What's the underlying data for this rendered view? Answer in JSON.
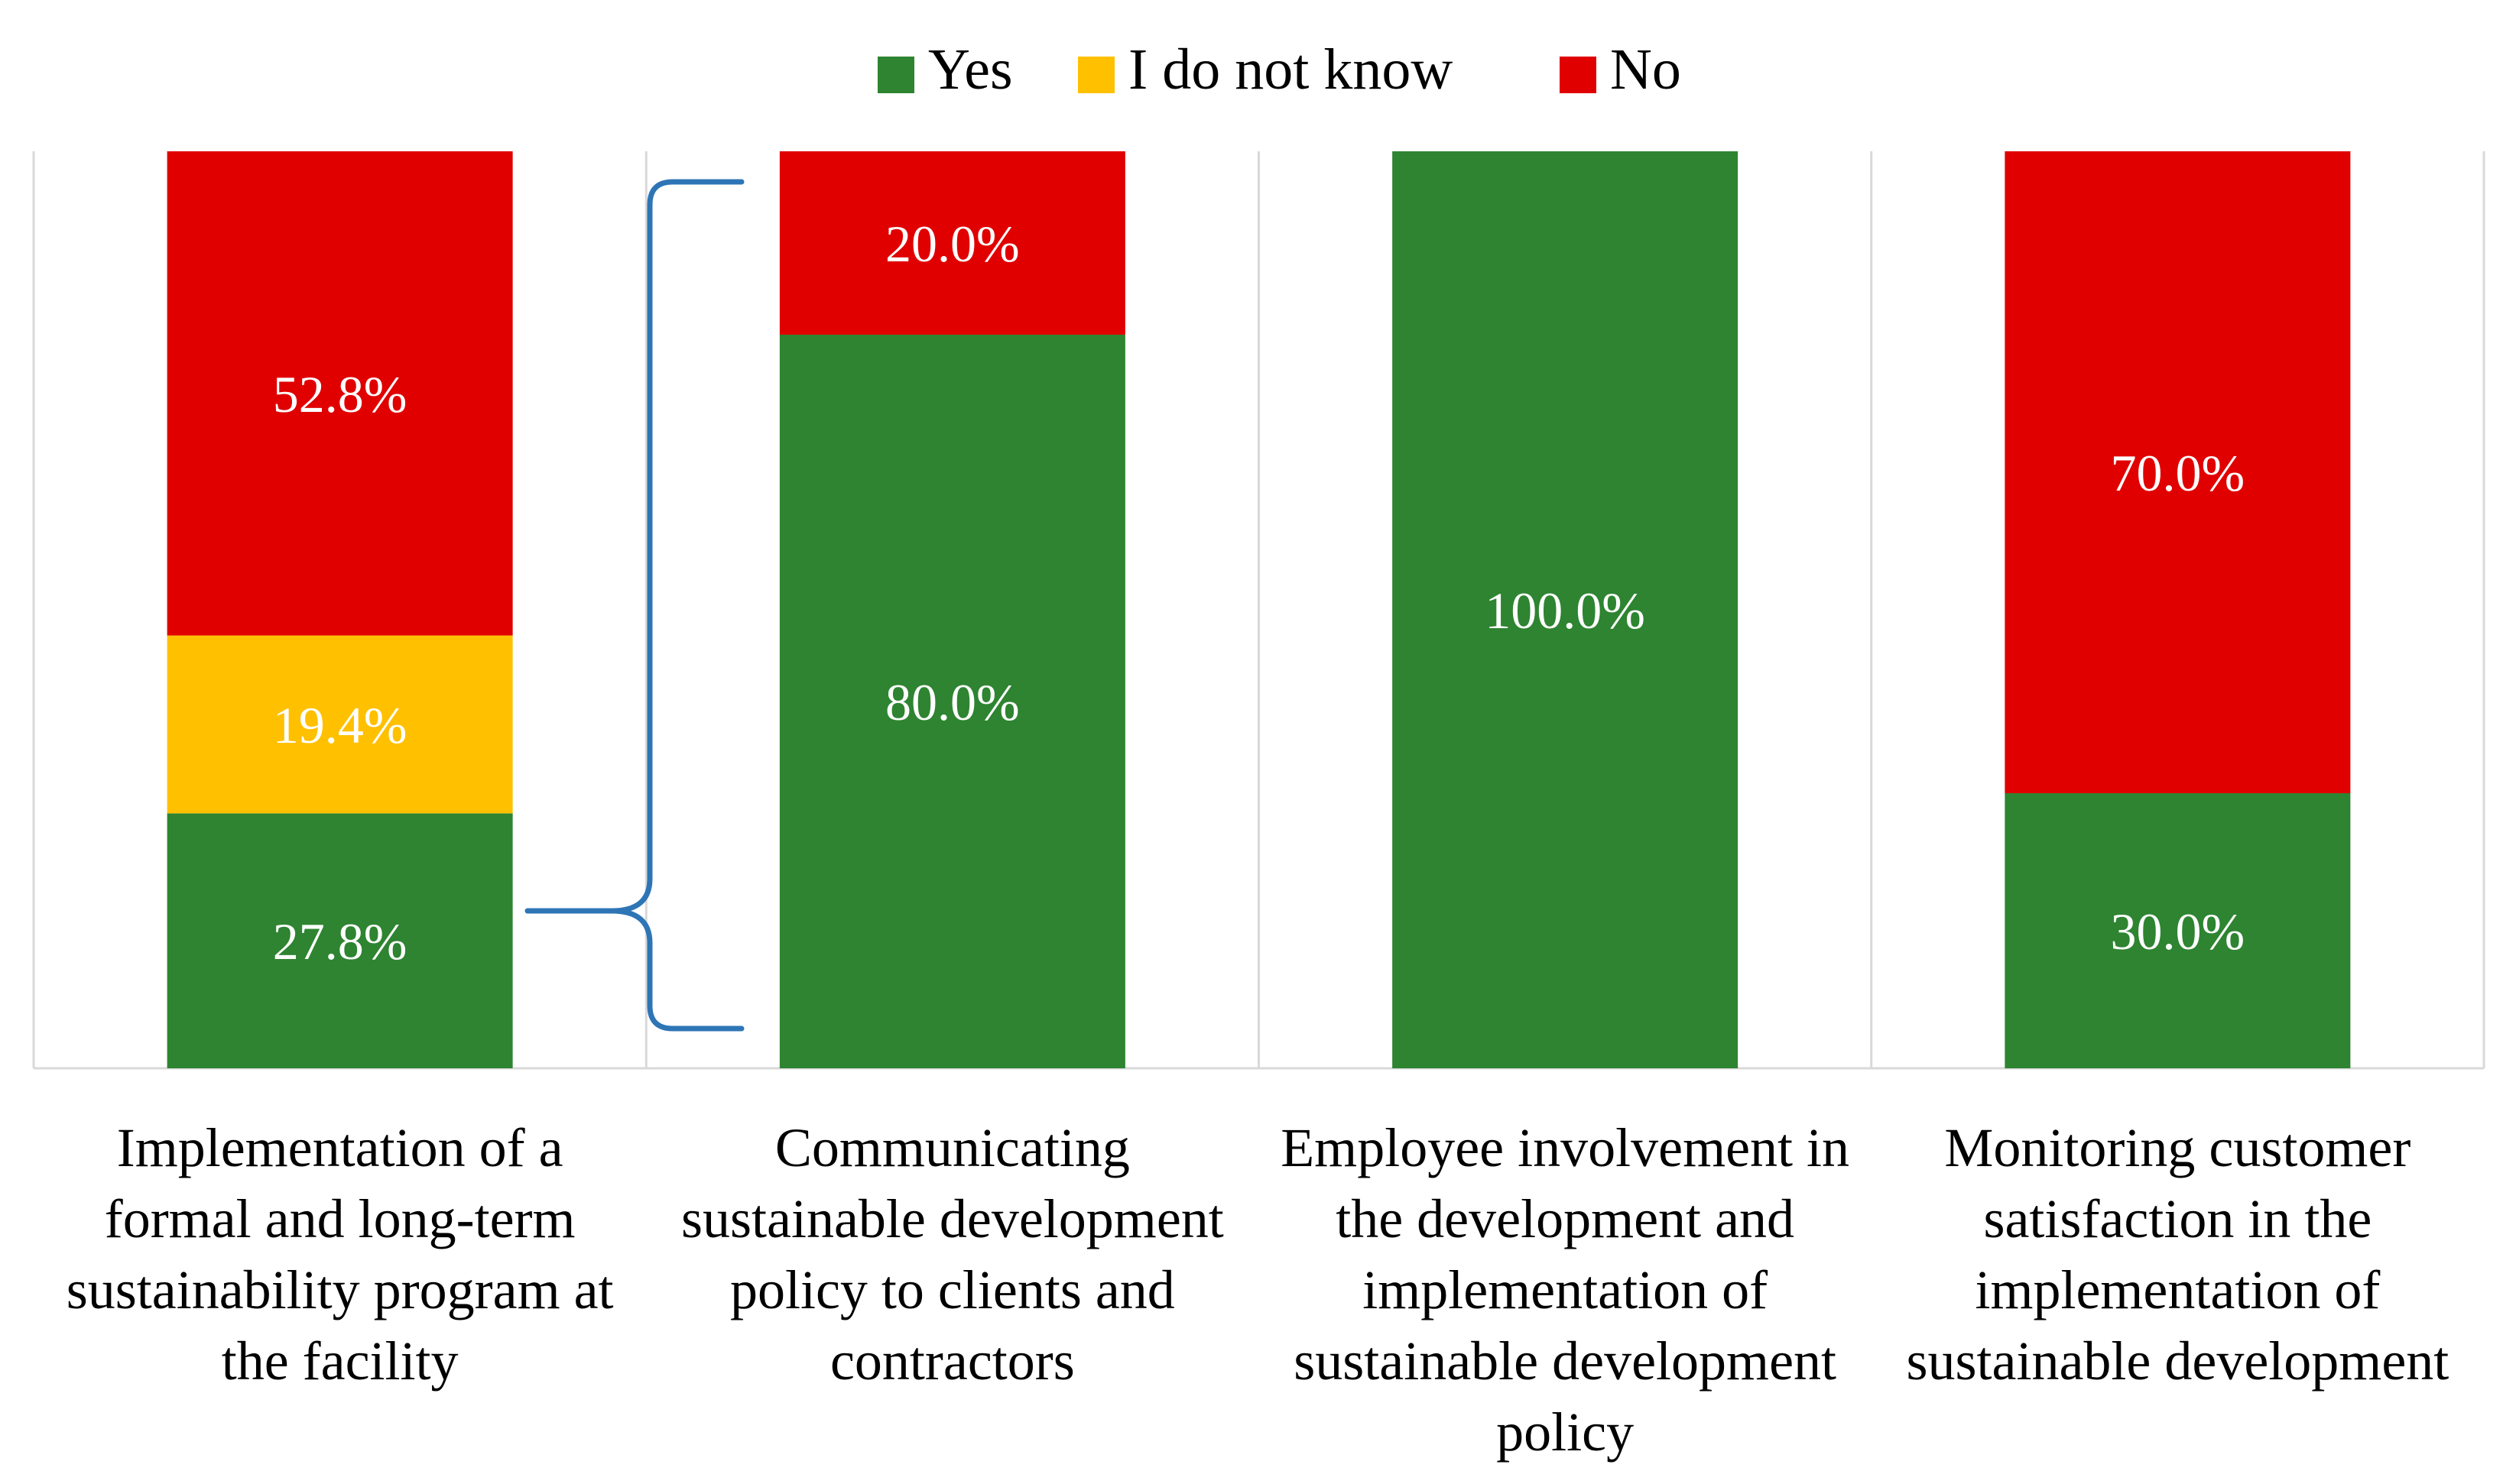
{
  "chart_data": {
    "type": "bar",
    "stacked": true,
    "normalized": true,
    "ylim": [
      0,
      100
    ],
    "grid": false,
    "legend_position": "top-center",
    "categories": [
      "Implementation of a formal and long-term sustainability program at the facility",
      "Communicating sustainable development policy to clients and contractors",
      "Employee involvement in the development and implementation of sustainable development policy",
      "Monitoring customer satisfaction in the implementation of sustainable development"
    ],
    "category_lines": [
      [
        "Implementation of a",
        "formal and long-term",
        "sustainability program at",
        "the facility"
      ],
      [
        "Communicating",
        "sustainable development",
        "policy to clients and",
        "contractors"
      ],
      [
        "Employee involvement in",
        "the development and",
        "implementation of",
        "sustainable development",
        "policy"
      ],
      [
        "Monitoring customer",
        "satisfaction in the",
        "implementation of",
        "sustainable development"
      ]
    ],
    "series": [
      {
        "name": "Yes",
        "color": "#2e8431",
        "values": [
          27.8,
          80.0,
          100.0,
          30.0
        ],
        "labels": [
          "27.8%",
          "80.0%",
          "100.0%",
          "30.0%"
        ]
      },
      {
        "name": "I do not know",
        "color": "#ffc000",
        "values": [
          19.4,
          0,
          0,
          0
        ],
        "labels": [
          "19.4%",
          "",
          "",
          ""
        ]
      },
      {
        "name": "No",
        "color": "#e00000",
        "values": [
          52.8,
          20.0,
          0,
          70.0
        ],
        "labels": [
          "52.8%",
          "20.0%",
          "",
          "70.0%"
        ]
      }
    ],
    "annotation": {
      "type": "brace",
      "from_category": 0,
      "from_series": "Yes",
      "to_category": 1,
      "color": "#2e75b6"
    }
  }
}
